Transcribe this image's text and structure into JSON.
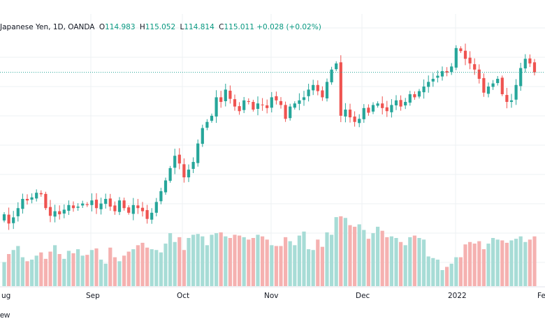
{
  "legend": {
    "symbol": "Japanese Yen, 1D, OANDA",
    "o_key": "O",
    "o_val": "114.983",
    "h_key": "H",
    "h_val": "115.052",
    "l_key": "L",
    "l_val": "114.814",
    "c_key": "C",
    "c_val": "115.011",
    "change": "+0.028 (+0.02%)"
  },
  "footer_text": "ew",
  "colors": {
    "up": "#26a69a",
    "down": "#ef5350",
    "vol_up": "#a7dcd6",
    "vol_down": "#f5b1b0",
    "grid": "#eef0f3",
    "price_line": "#26a69a"
  },
  "chart_data": {
    "type": "candlestick",
    "title": "",
    "x_tick_labels": [
      "ug",
      "Sep",
      "Oct",
      "Nov",
      "Dec",
      "2022",
      "Fe"
    ],
    "last_close": 115.011,
    "y_range_estimate": [
      109.2,
      116.0
    ],
    "series_close": [
      110.4,
      110.1,
      110.3,
      110.6,
      110.9,
      110.85,
      110.95,
      111.1,
      111.05,
      110.6,
      110.35,
      110.5,
      110.4,
      110.55,
      110.7,
      110.6,
      110.65,
      110.75,
      110.7,
      110.85,
      110.6,
      110.75,
      110.9,
      110.65,
      110.5,
      110.85,
      110.6,
      110.45,
      110.7,
      110.6,
      110.5,
      110.25,
      110.45,
      110.8,
      111.15,
      111.5,
      111.9,
      112.3,
      112.05,
      111.6,
      111.85,
      112.1,
      112.7,
      113.2,
      113.4,
      113.6,
      114.2,
      114.05,
      114.45,
      114.15,
      113.9,
      113.75,
      114.1,
      114.05,
      113.8,
      114.0,
      113.95,
      113.85,
      114.2,
      114.1,
      113.95,
      113.5,
      113.9,
      114.0,
      114.1,
      114.2,
      114.45,
      114.6,
      114.4,
      114.2,
      114.7,
      115.1,
      115.3,
      113.6,
      113.8,
      113.55,
      113.4,
      113.5,
      113.85,
      113.7,
      113.95,
      114.0,
      113.85,
      113.75,
      113.95,
      114.1,
      113.9,
      114.05,
      114.3,
      114.2,
      114.4,
      114.55,
      114.7,
      114.8,
      114.9,
      115.05,
      115.0,
      115.2,
      115.8,
      115.7,
      115.45,
      115.3,
      115.1,
      114.8,
      114.35,
      114.55,
      114.65,
      114.8,
      114.3,
      114.05,
      114.1,
      114.6,
      115.15,
      115.45,
      115.3,
      115.011
    ],
    "volume_relative": [
      0.3,
      0.4,
      0.45,
      0.5,
      0.36,
      0.31,
      0.33,
      0.38,
      0.42,
      0.34,
      0.43,
      0.51,
      0.4,
      0.34,
      0.44,
      0.41,
      0.46,
      0.38,
      0.39,
      0.45,
      0.47,
      0.33,
      0.28,
      0.48,
      0.36,
      0.31,
      0.38,
      0.43,
      0.46,
      0.51,
      0.54,
      0.48,
      0.46,
      0.45,
      0.42,
      0.53,
      0.66,
      0.55,
      0.61,
      0.45,
      0.6,
      0.64,
      0.65,
      0.62,
      0.51,
      0.64,
      0.66,
      0.67,
      0.62,
      0.6,
      0.64,
      0.63,
      0.61,
      0.58,
      0.6,
      0.64,
      0.62,
      0.58,
      0.51,
      0.5,
      0.5,
      0.61,
      0.56,
      0.51,
      0.63,
      0.68,
      0.46,
      0.45,
      0.58,
      0.49,
      0.67,
      0.64,
      0.86,
      0.87,
      0.85,
      0.76,
      0.74,
      0.77,
      0.7,
      0.59,
      0.66,
      0.74,
      0.69,
      0.61,
      0.62,
      0.6,
      0.55,
      0.51,
      0.61,
      0.63,
      0.6,
      0.58,
      0.37,
      0.35,
      0.33,
      0.2,
      0.24,
      0.28,
      0.36,
      0.36,
      0.52,
      0.55,
      0.53,
      0.56,
      0.46,
      0.53,
      0.6,
      0.58,
      0.57,
      0.54,
      0.57,
      0.59,
      0.62,
      0.55,
      0.58,
      0.62
    ]
  }
}
